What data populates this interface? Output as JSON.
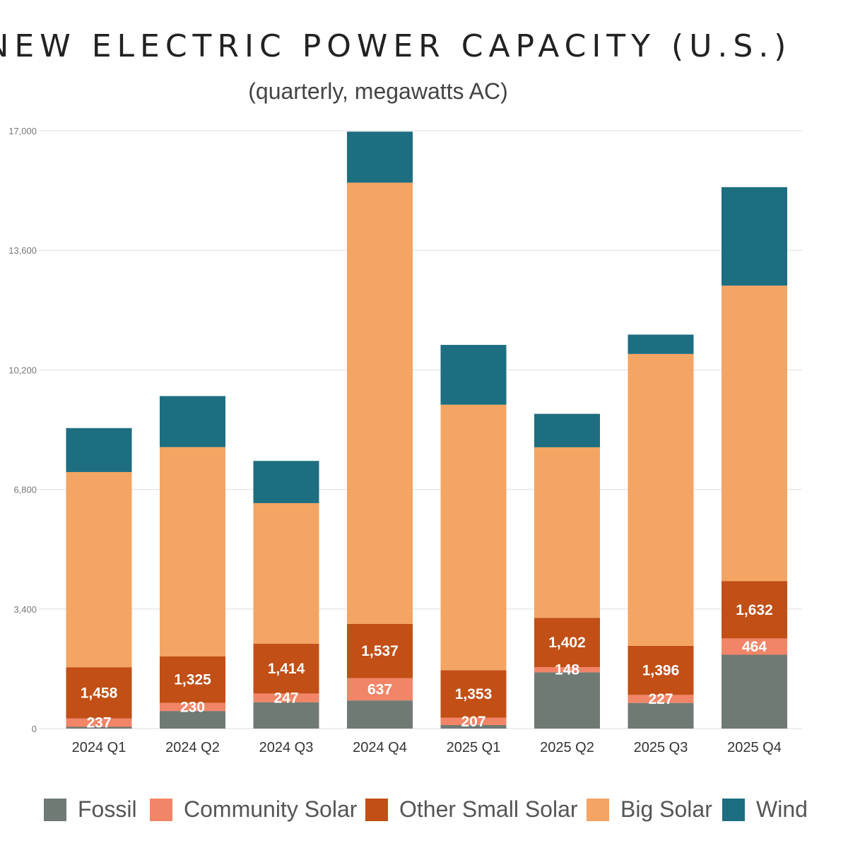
{
  "colors": {
    "Fossil": "#707a75",
    "Community Solar": "#f28567",
    "Other Small Solar": "#c14f16",
    "Big Solar": "#f4a463",
    "Wind": "#1d6e80"
  },
  "chart_data": {
    "type": "bar",
    "stacked": true,
    "title": "NEW ELECTRIC POWER CAPACITY (U.S.)",
    "subtitle": "(quarterly, megawatts AC)",
    "categories": [
      "2024 Q1",
      "2024 Q2",
      "2024 Q3",
      "2024 Q4",
      "2025 Q1",
      "2025 Q2",
      "2025 Q3",
      "2025 Q4"
    ],
    "ylim": [
      0,
      17000
    ],
    "yticks": [
      "0",
      "3,400",
      "6,800",
      "10,200",
      "13,600",
      "17,000"
    ],
    "ytick_values": [
      0,
      3400,
      6800,
      10200,
      13600,
      17000
    ],
    "grid": true,
    "legend_position": "bottom",
    "series": [
      {
        "name": "Fossil",
        "values": [
          50,
          500,
          750,
          800,
          100,
          1600,
          730,
          2100
        ],
        "labels": [
          null,
          null,
          null,
          null,
          null,
          null,
          null,
          null
        ]
      },
      {
        "name": "Community Solar",
        "values": [
          237,
          230,
          247,
          637,
          207,
          148,
          227,
          464
        ],
        "labels": [
          "237",
          "230",
          "247",
          "637",
          "207",
          "148",
          "227",
          "464"
        ]
      },
      {
        "name": "Other Small Solar",
        "values": [
          1458,
          1325,
          1414,
          1537,
          1353,
          1402,
          1396,
          1632
        ],
        "labels": [
          "1,458",
          "1,325",
          "1,414",
          "1,537",
          "1,353",
          "1,402",
          "1,396",
          "1,632"
        ]
      },
      {
        "name": "Big Solar",
        "values": [
          5550,
          5950,
          4000,
          12550,
          7550,
          4850,
          8300,
          8400
        ],
        "labels": [
          null,
          null,
          null,
          null,
          null,
          null,
          null,
          null
        ]
      },
      {
        "name": "Wind",
        "values": [
          1250,
          1450,
          1200,
          1450,
          1700,
          950,
          550,
          2800
        ],
        "labels": [
          null,
          null,
          null,
          null,
          null,
          null,
          null,
          null
        ]
      }
    ]
  }
}
